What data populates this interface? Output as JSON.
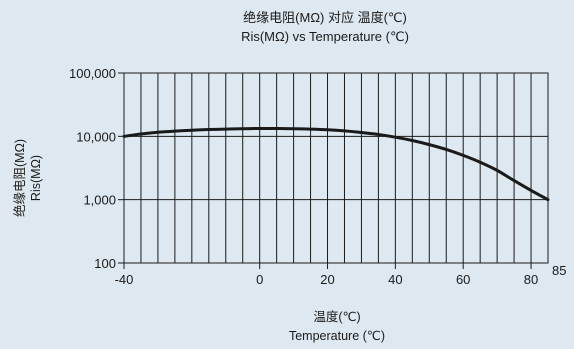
{
  "chart_data": {
    "type": "line",
    "title": "绝缘电阻(MΩ)  对应  温度(℃)",
    "subtitle": "Ris(MΩ) vs Temperature (℃)",
    "xlabel_line1": "温度(℃)",
    "xlabel_line2": "Temperature (℃)",
    "ylabel_line1": "绝缘电阻(MΩ)",
    "ylabel_line2": "Ris(MΩ)",
    "x_ticks": [
      {
        "value": -40,
        "label": "-40"
      },
      {
        "value": 0,
        "label": "0"
      },
      {
        "value": 20,
        "label": "20"
      },
      {
        "value": 40,
        "label": "40"
      },
      {
        "value": 60,
        "label": "60"
      },
      {
        "value": 80,
        "label": "80"
      },
      {
        "value": 85,
        "label": "85"
      }
    ],
    "y_ticks": [
      {
        "value": 100,
        "label": "100"
      },
      {
        "value": 1000,
        "label": "1,000"
      },
      {
        "value": 10000,
        "label": "10,000"
      },
      {
        "value": 100000,
        "label": "100,000"
      }
    ],
    "xlim": [
      -40,
      85
    ],
    "ylim": [
      100,
      100000
    ],
    "y_scale": "log",
    "grid": true,
    "x_grid_step": 5,
    "series": [
      {
        "x": [
          -40,
          -35,
          -30,
          -25,
          -20,
          -15,
          -10,
          -5,
          0,
          5,
          10,
          15,
          20,
          25,
          30,
          35,
          40,
          45,
          50,
          55,
          60,
          65,
          70,
          75,
          80,
          85
        ],
        "values": [
          10000,
          10900,
          11600,
          12100,
          12500,
          12800,
          13000,
          13200,
          13300,
          13300,
          13200,
          13000,
          12700,
          12200,
          11500,
          10700,
          9700,
          8600,
          7400,
          6200,
          5000,
          3900,
          2900,
          2000,
          1400,
          1000
        ]
      }
    ]
  }
}
